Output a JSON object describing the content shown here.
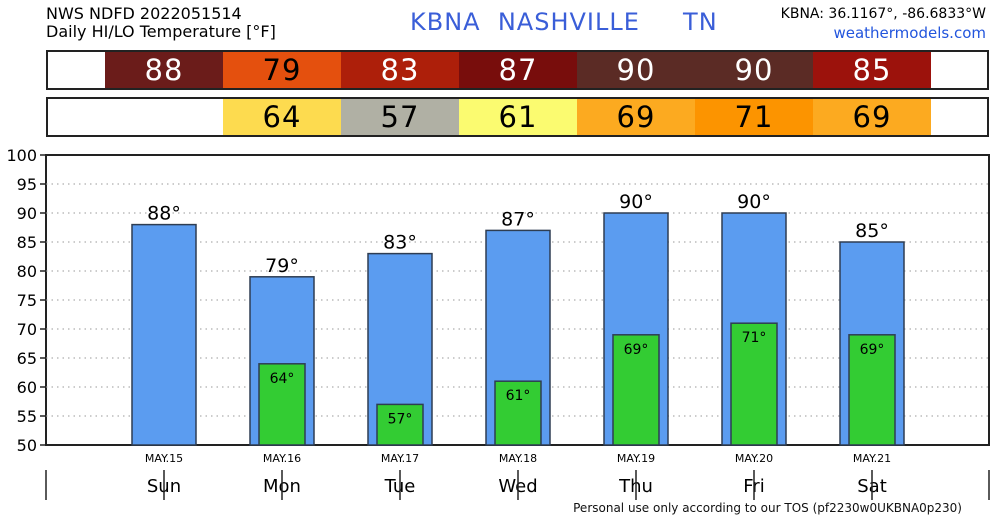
{
  "header": {
    "line1": "NWS NDFD 2022051514",
    "line2": "Daily HI/LO Temperature [°F]",
    "station_title": "KBNA  NASHVILLE     TN",
    "coords": "KBNA: 36.1167°, -86.6833°W",
    "site": "weathermodels.com"
  },
  "footer": "Personal use only according to our TOS (pf2230w0UKBNA0p230)",
  "colors": {
    "bar_high": "#5b9cf0",
    "bar_low": "#33cc33",
    "high_cells": [
      "#6b1c1a",
      "#e4500e",
      "#ad1f0a",
      "#780d0c",
      "#5b2b25",
      "#5b2b25",
      "#9c120c"
    ],
    "low_cells": [
      "#fddb4f",
      "#b0b0a4",
      "#fbfb70",
      "#fcaa20",
      "#fc9400",
      "#fcaa20"
    ]
  },
  "high_strip": [
    "88",
    "79",
    "83",
    "87",
    "90",
    "90",
    "85"
  ],
  "low_strip": [
    "64",
    "57",
    "61",
    "69",
    "71",
    "69"
  ],
  "chart_data": {
    "type": "bar",
    "dates": [
      "MAY.15",
      "MAY.16",
      "MAY.17",
      "MAY.18",
      "MAY.19",
      "MAY.20",
      "MAY.21"
    ],
    "days": [
      "Sun",
      "Mon",
      "Tue",
      "Wed",
      "Thu",
      "Fri",
      "Sat"
    ],
    "series": [
      {
        "values": [
          88,
          79,
          83,
          87,
          90,
          90,
          85
        ]
      },
      {
        "values": [
          null,
          64,
          57,
          61,
          69,
          71,
          69
        ]
      }
    ],
    "high_labels": [
      "88°",
      "79°",
      "83°",
      "87°",
      "90°",
      "90°",
      "85°"
    ],
    "low_labels": [
      "",
      "64°",
      "57°",
      "61°",
      "69°",
      "71°",
      "69°"
    ],
    "yticks": [
      "50",
      "55",
      "60",
      "65",
      "70",
      "75",
      "80",
      "85",
      "90",
      "95",
      "100"
    ],
    "ylim": [
      50,
      100
    ],
    "grid": true
  }
}
